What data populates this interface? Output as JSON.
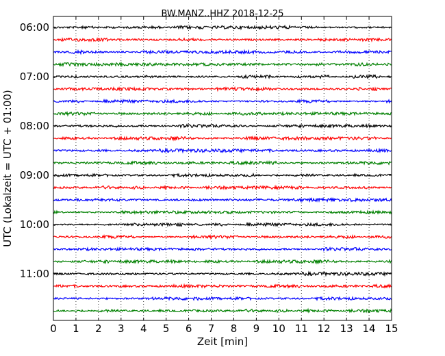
{
  "chart_data": {
    "type": "line",
    "title": "BW.MANZ..HHZ 2018-12-25",
    "xlabel": "Zeit  [min]",
    "ylabel": "UTC (Lokalzeit = UTC + 01:00)",
    "xlim": [
      0,
      15
    ],
    "x_ticks": [
      "0",
      "1",
      "2",
      "3",
      "4",
      "5",
      "6",
      "7",
      "8",
      "9",
      "10",
      "11",
      "12",
      "13",
      "14",
      "15"
    ],
    "y_ticks": [
      "06:00",
      "07:00",
      "08:00",
      "09:00",
      "10:00",
      "11:00"
    ],
    "y_tick_row_interval": 4,
    "vertical_grid": "dotted, every 1 min",
    "trace_colors": [
      "#000000",
      "#ff0000",
      "#0000ff",
      "#008000"
    ],
    "series": [
      {
        "start": "06:00",
        "color": "#000000"
      },
      {
        "start": "06:15",
        "color": "#ff0000"
      },
      {
        "start": "06:30",
        "color": "#0000ff"
      },
      {
        "start": "06:45",
        "color": "#008000"
      },
      {
        "start": "07:00",
        "color": "#000000"
      },
      {
        "start": "07:15",
        "color": "#ff0000"
      },
      {
        "start": "07:30",
        "color": "#0000ff"
      },
      {
        "start": "07:45",
        "color": "#008000"
      },
      {
        "start": "08:00",
        "color": "#000000"
      },
      {
        "start": "08:15",
        "color": "#ff0000"
      },
      {
        "start": "08:30",
        "color": "#0000ff"
      },
      {
        "start": "08:45",
        "color": "#008000"
      },
      {
        "start": "09:00",
        "color": "#000000"
      },
      {
        "start": "09:15",
        "color": "#ff0000"
      },
      {
        "start": "09:30",
        "color": "#0000ff"
      },
      {
        "start": "09:45",
        "color": "#008000"
      },
      {
        "start": "10:00",
        "color": "#000000"
      },
      {
        "start": "10:15",
        "color": "#ff0000"
      },
      {
        "start": "10:30",
        "color": "#0000ff"
      },
      {
        "start": "10:45",
        "color": "#008000"
      },
      {
        "start": "11:00",
        "color": "#000000"
      },
      {
        "start": "11:15",
        "color": "#ff0000"
      },
      {
        "start": "11:30",
        "color": "#0000ff"
      },
      {
        "start": "11:45",
        "color": "#008000"
      }
    ]
  }
}
